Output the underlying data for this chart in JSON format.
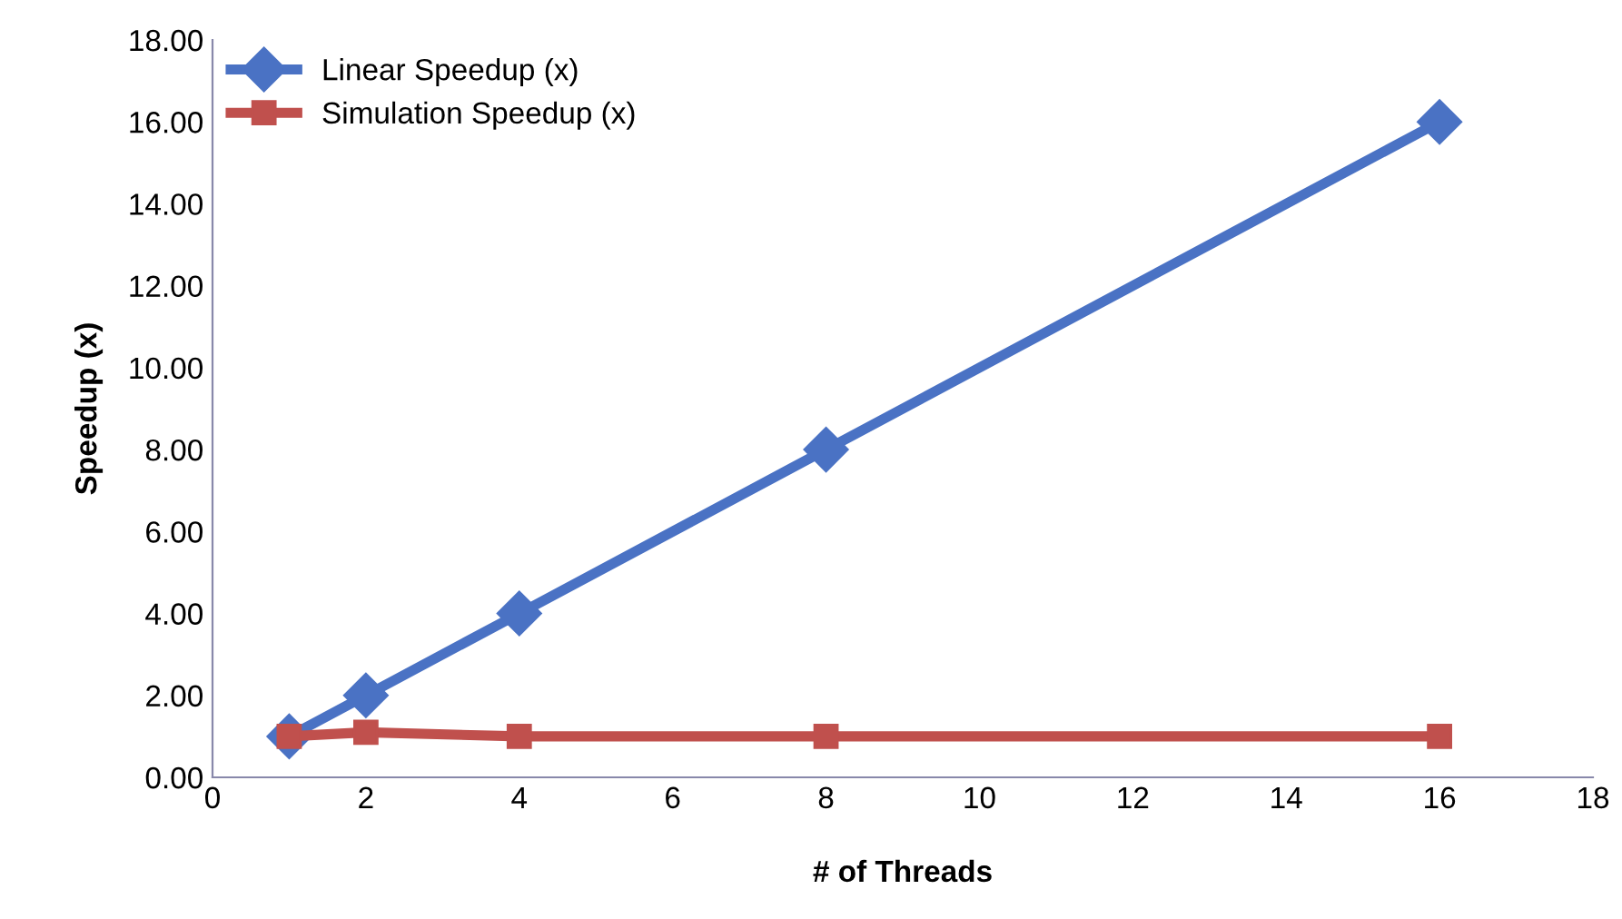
{
  "chart_data": {
    "type": "line",
    "xlabel": "# of Threads",
    "ylabel": "Speedup (x)",
    "series": [
      {
        "name": "Linear Speedup (x)",
        "color": "#4a72c4",
        "marker": "diamond",
        "x": [
          1,
          2,
          4,
          8,
          16
        ],
        "values": [
          1,
          2,
          4,
          8,
          16
        ]
      },
      {
        "name": "Simulation Speedup (x)",
        "color": "#c0504d",
        "marker": "square",
        "x": [
          1,
          2,
          4,
          8,
          16
        ],
        "values": [
          1.0,
          1.1,
          1.0,
          1.0,
          1.0
        ]
      }
    ],
    "xlim": [
      0,
      18
    ],
    "xticks": [
      0,
      2,
      4,
      6,
      8,
      10,
      12,
      14,
      16,
      18
    ],
    "ylim": [
      0,
      18
    ],
    "yticks": [
      {
        "value": 0,
        "label": "0.00"
      },
      {
        "value": 2,
        "label": "2.00"
      },
      {
        "value": 4,
        "label": "4.00"
      },
      {
        "value": 6,
        "label": "6.00"
      },
      {
        "value": 8,
        "label": "8.00"
      },
      {
        "value": 10,
        "label": "10.00"
      },
      {
        "value": 12,
        "label": "12.00"
      },
      {
        "value": 14,
        "label": "14.00"
      },
      {
        "value": 16,
        "label": "16.00"
      },
      {
        "value": 18,
        "label": "18.00"
      }
    ],
    "grid": false,
    "legend": "top left"
  }
}
